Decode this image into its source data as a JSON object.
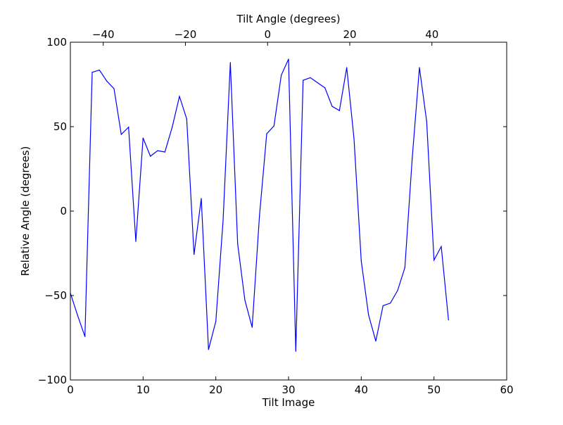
{
  "chart_data": {
    "type": "line",
    "title": "",
    "xlabel": "Tilt Image",
    "ylabel": "Relative Angle (degrees)",
    "top_xlabel": "Tilt Angle (degrees)",
    "xlim": [
      0,
      60
    ],
    "ylim": [
      -100,
      100
    ],
    "top_xlim": [
      -48,
      58.2
    ],
    "xticks": [
      0,
      10,
      20,
      30,
      40,
      50,
      60
    ],
    "yticks": [
      -100,
      -50,
      0,
      50,
      100
    ],
    "top_xticks": [
      -40,
      -20,
      0,
      20,
      40
    ],
    "xtick_labels": [
      "0",
      "10",
      "20",
      "30",
      "40",
      "50",
      "60"
    ],
    "ytick_labels": [
      "−100",
      "−50",
      "0",
      "50",
      "100"
    ],
    "top_xtick_labels": [
      "−40",
      "−20",
      "0",
      "20",
      "40"
    ],
    "grid": false,
    "series": [
      {
        "name": "relative angle",
        "color": "#0000ff",
        "x": [
          0,
          1,
          2,
          3,
          4,
          5,
          6,
          7,
          8,
          9,
          10,
          11,
          12,
          13,
          14,
          15,
          16,
          17,
          18,
          19,
          20,
          21,
          22,
          23,
          24,
          25,
          26,
          27,
          28,
          29,
          30,
          31,
          32,
          33,
          34,
          35,
          36,
          37,
          38,
          39,
          40,
          41,
          42,
          43,
          44,
          45,
          46,
          47,
          48,
          49,
          50,
          51,
          52
        ],
        "y": [
          -48.6,
          -61.8,
          -74.3,
          82.2,
          83.5,
          77,
          72.5,
          45.4,
          49.7,
          -18,
          43.3,
          32.5,
          35.8,
          35,
          49.7,
          67.9,
          54.6,
          -25.7,
          7.5,
          -82,
          -65.3,
          -5.5,
          88,
          -19.4,
          -52.8,
          -68.8,
          -2.8,
          45.8,
          50.4,
          80.5,
          90,
          -83,
          77.5,
          79,
          76,
          73,
          62,
          59.5,
          85,
          43,
          -29.5,
          -61.5,
          -77,
          -56,
          -54.5,
          -47,
          -33.5,
          31,
          85,
          53,
          -29,
          -21,
          -64.5
        ]
      }
    ]
  }
}
